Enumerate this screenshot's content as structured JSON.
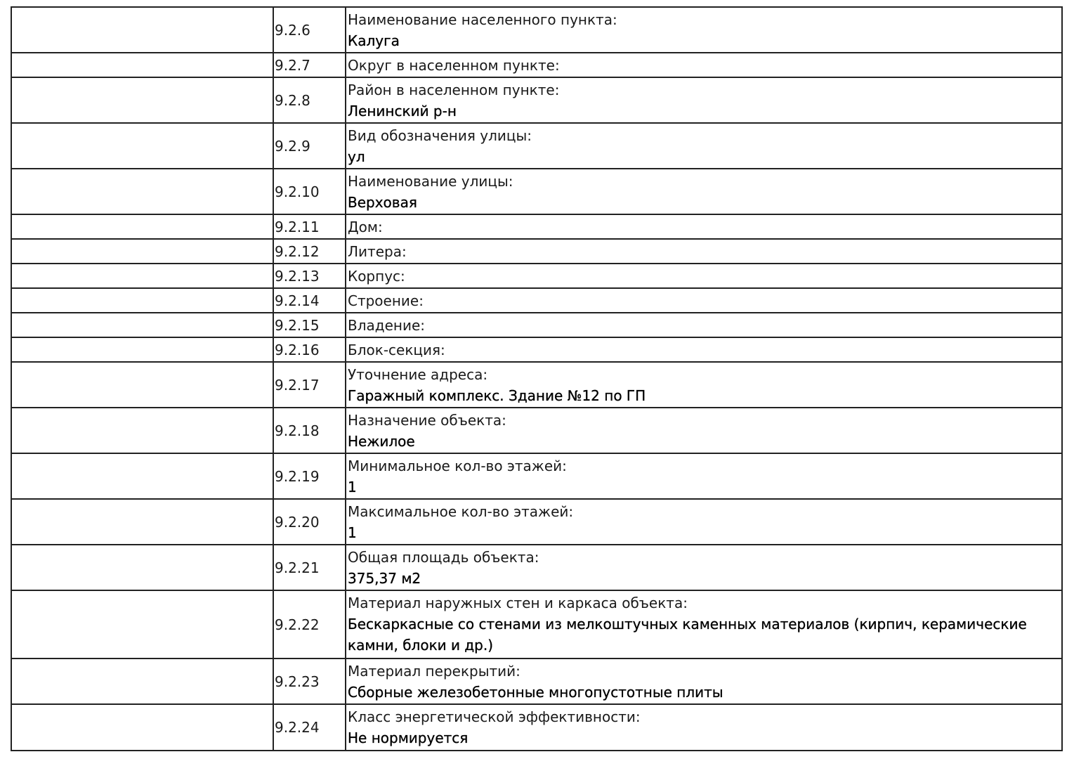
{
  "rows": [
    {
      "num": "9.2.6",
      "label": "Наименование населенного пункта:",
      "value": "Калуга"
    },
    {
      "num": "9.2.7",
      "label": "Округ в населенном пункте:",
      "value": ""
    },
    {
      "num": "9.2.8",
      "label": "Район в населенном пункте:",
      "value": "Ленинский р-н"
    },
    {
      "num": "9.2.9",
      "label": "Вид обозначения улицы:",
      "value": "ул"
    },
    {
      "num": "9.2.10",
      "label": "Наименование улицы:",
      "value": "Верховая"
    },
    {
      "num": "9.2.11",
      "label": "Дом:",
      "value": ""
    },
    {
      "num": "9.2.12",
      "label": "Литера:",
      "value": ""
    },
    {
      "num": "9.2.13",
      "label": "Корпус:",
      "value": ""
    },
    {
      "num": "9.2.14",
      "label": "Строение:",
      "value": ""
    },
    {
      "num": "9.2.15",
      "label": "Владение:",
      "value": ""
    },
    {
      "num": "9.2.16",
      "label": "Блок-секция:",
      "value": ""
    },
    {
      "num": "9.2.17",
      "label": "Уточнение адреса:",
      "value": "Гаражный комплекс. Здание №12 по ГП"
    },
    {
      "num": "9.2.18",
      "label": "Назначение объекта:",
      "value": "Нежилое"
    },
    {
      "num": "9.2.19",
      "label": "Минимальное кол-во этажей:",
      "value": "1"
    },
    {
      "num": "9.2.20",
      "label": "Максимальное кол-во этажей:",
      "value": "1"
    },
    {
      "num": "9.2.21",
      "label": "Общая площадь объекта:",
      "value": "375,37 м2"
    },
    {
      "num": "9.2.22",
      "label": "Материал наружных стен и каркаса объекта:",
      "value": "Бескаркасные со стенами из мелкоштучных каменных материалов (кирпич, керамические камни, блоки и др.)"
    },
    {
      "num": "9.2.23",
      "label": "Материал перекрытий:",
      "value": "Сборные железобетонные многопустотные плиты"
    },
    {
      "num": "9.2.24",
      "label": "Класс энергетической эффективности:",
      "value": "Не нормируется"
    }
  ]
}
